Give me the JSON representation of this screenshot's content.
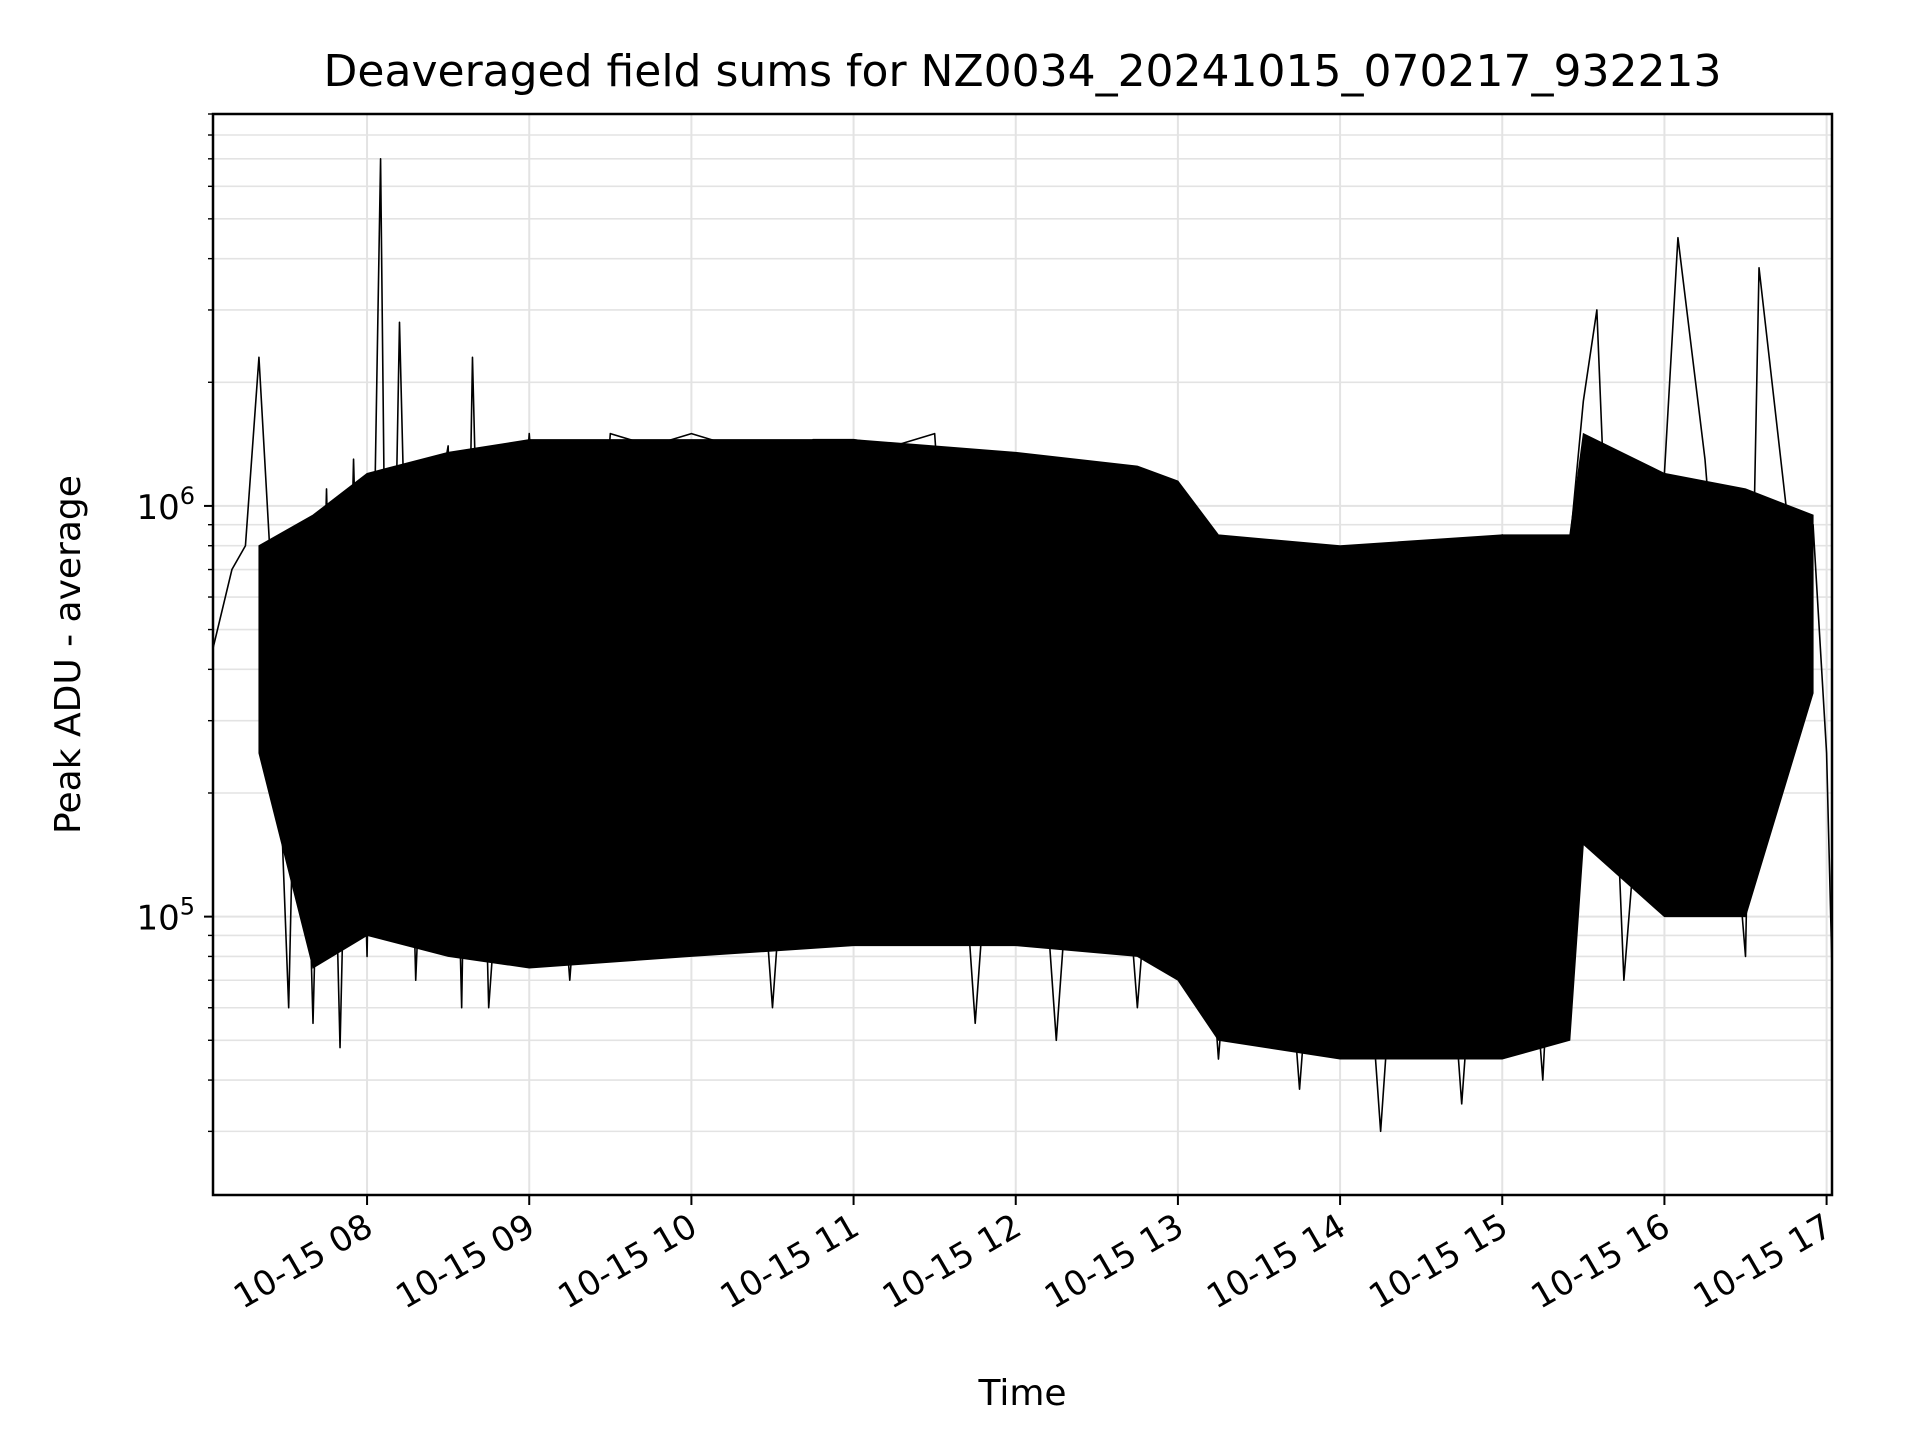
{
  "chart_data": {
    "type": "line",
    "title": "Deaveraged field sums for NZ0034_20241015_070217_932213",
    "xlabel": "Time",
    "ylabel": "Peak ADU - average",
    "x_tick_labels": [
      "10-15 08",
      "10-15 09",
      "10-15 10",
      "10-15 11",
      "10-15 12",
      "10-15 13",
      "10-15 14",
      "10-15 15",
      "10-15 16",
      "10-15 17"
    ],
    "y_tick_labels": [
      {
        "base": "10",
        "exp": "5",
        "value": 100000
      },
      {
        "base": "10",
        "exp": "6",
        "value": 1000000
      }
    ],
    "xlim": [
      "2024-10-15 07:03",
      "2024-10-15 17:02"
    ],
    "ylim": [
      21000,
      9000000
    ],
    "yscale": "log",
    "grid": true,
    "line_color": "#000000",
    "series": [
      {
        "x": [
          "2024-10-15 07:03",
          "2024-10-15 07:10",
          "2024-10-15 07:15",
          "2024-10-15 07:20",
          "2024-10-15 07:25",
          "2024-10-15 07:28",
          "2024-10-15 07:31",
          "2024-10-15 07:35",
          "2024-10-15 07:40",
          "2024-10-15 07:45",
          "2024-10-15 07:50",
          "2024-10-15 07:55",
          "2024-10-15 08:00",
          "2024-10-15 08:05",
          "2024-10-15 08:08",
          "2024-10-15 08:12",
          "2024-10-15 08:18",
          "2024-10-15 08:25",
          "2024-10-15 08:30",
          "2024-10-15 08:35",
          "2024-10-15 08:39",
          "2024-10-15 08:45",
          "2024-10-15 09:00",
          "2024-10-15 09:15",
          "2024-10-15 09:30",
          "2024-10-15 09:45",
          "2024-10-15 10:00",
          "2024-10-15 10:15",
          "2024-10-15 10:30",
          "2024-10-15 10:45",
          "2024-10-15 11:00",
          "2024-10-15 11:15",
          "2024-10-15 11:30",
          "2024-10-15 11:45",
          "2024-10-15 12:00",
          "2024-10-15 12:15",
          "2024-10-15 12:30",
          "2024-10-15 12:45",
          "2024-10-15 13:00",
          "2024-10-15 13:15",
          "2024-10-15 13:30",
          "2024-10-15 13:45",
          "2024-10-15 14:00",
          "2024-10-15 14:15",
          "2024-10-15 14:30",
          "2024-10-15 14:45",
          "2024-10-15 15:00",
          "2024-10-15 15:15",
          "2024-10-15 15:25",
          "2024-10-15 15:30",
          "2024-10-15 15:35",
          "2024-10-15 15:45",
          "2024-10-15 16:00",
          "2024-10-15 16:05",
          "2024-10-15 16:15",
          "2024-10-15 16:30",
          "2024-10-15 16:35",
          "2024-10-15 16:45",
          "2024-10-15 16:55",
          "2024-10-15 17:00",
          "2024-10-15 17:02"
        ],
        "y": [
          450000,
          700000,
          800000,
          2300000,
          600000,
          200000,
          60000,
          900000,
          55000,
          1100000,
          48000,
          1300000,
          80000,
          7000000,
          100000,
          2800000,
          70000,
          900000,
          1400000,
          60000,
          2300000,
          60000,
          1500000,
          70000,
          1500000,
          1400000,
          1500000,
          1400000,
          60000,
          1450000,
          1450000,
          1400000,
          1500000,
          55000,
          1300000,
          50000,
          1200000,
          60000,
          1100000,
          45000,
          800000,
          38000,
          750000,
          30000,
          800000,
          35000,
          850000,
          40000,
          800000,
          1800000,
          3000000,
          70000,
          1200000,
          4500000,
          1300000,
          80000,
          3800000,
          1000000,
          900000,
          250000,
          75000
        ]
      }
    ],
    "envelope": {
      "x": [
        "2024-10-15 07:20",
        "2024-10-15 07:40",
        "2024-10-15 08:00",
        "2024-10-15 08:30",
        "2024-10-15 09:00",
        "2024-10-15 10:00",
        "2024-10-15 11:00",
        "2024-10-15 12:00",
        "2024-10-15 12:45",
        "2024-10-15 13:00",
        "2024-10-15 13:15",
        "2024-10-15 14:00",
        "2024-10-15 15:00",
        "2024-10-15 15:25",
        "2024-10-15 15:30",
        "2024-10-15 16:00",
        "2024-10-15 16:30",
        "2024-10-15 16:55"
      ],
      "upper": [
        800000,
        950000,
        1200000,
        1350000,
        1450000,
        1450000,
        1450000,
        1350000,
        1250000,
        1150000,
        850000,
        800000,
        850000,
        850000,
        1500000,
        1200000,
        1100000,
        950000
      ],
      "lower": [
        250000,
        75000,
        90000,
        80000,
        75000,
        80000,
        85000,
        85000,
        80000,
        70000,
        50000,
        45000,
        45000,
        50000,
        150000,
        100000,
        100000,
        350000
      ]
    }
  }
}
